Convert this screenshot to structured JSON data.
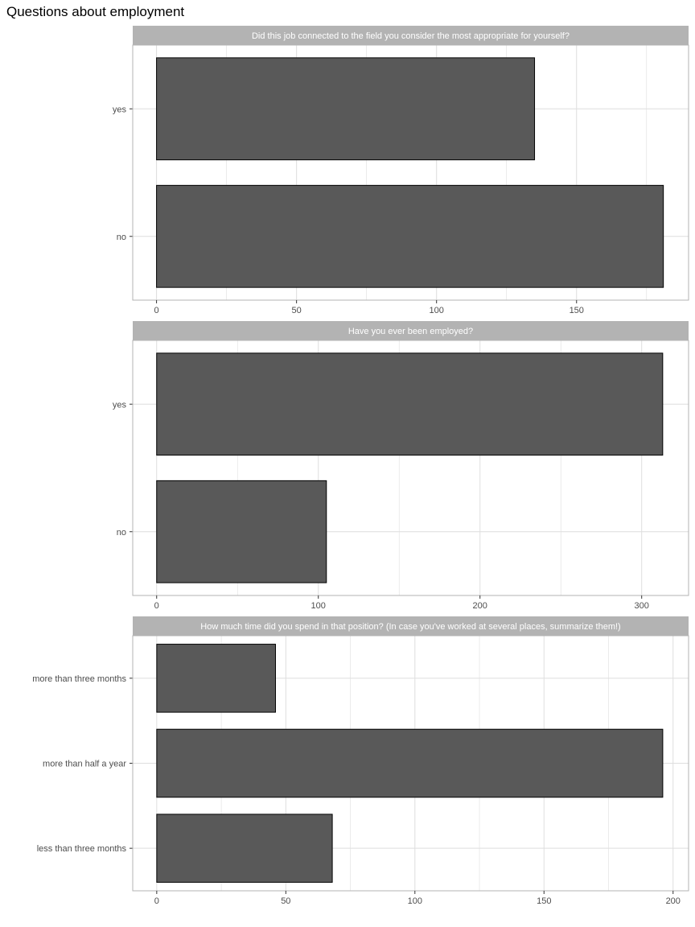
{
  "title": "Questions about employment",
  "colors": {
    "bar_fill": "#595959",
    "bar_stroke": "#000000",
    "strip_fill": "#b3b3b3",
    "grid": "#dedede",
    "panel_border": "#b3b3b3"
  },
  "chart_data": [
    {
      "type": "bar",
      "orientation": "horizontal",
      "title": "Did this job connected to the field you consider the most appropriate for yourself?",
      "categories": [
        "yes",
        "no"
      ],
      "values": [
        135,
        181
      ],
      "xlim": [
        -8.5,
        190
      ],
      "xticks": [
        0,
        50,
        100,
        150
      ],
      "grid": true
    },
    {
      "type": "bar",
      "orientation": "horizontal",
      "title": "Have you ever been employed?",
      "categories": [
        "yes",
        "no"
      ],
      "values": [
        313,
        105
      ],
      "xlim": [
        -14.8,
        329
      ],
      "xticks": [
        0,
        100,
        200,
        300
      ],
      "grid": true
    },
    {
      "type": "bar",
      "orientation": "horizontal",
      "title": "How much time did you spend in that position? (In case you've worked at several places, summarize them!)",
      "categories": [
        "more than three months",
        "more than half a year",
        "less than three months"
      ],
      "values": [
        46,
        196,
        68
      ],
      "xlim": [
        -9.3,
        206
      ],
      "xticks": [
        0,
        50,
        100,
        150,
        200
      ],
      "grid": true
    }
  ]
}
